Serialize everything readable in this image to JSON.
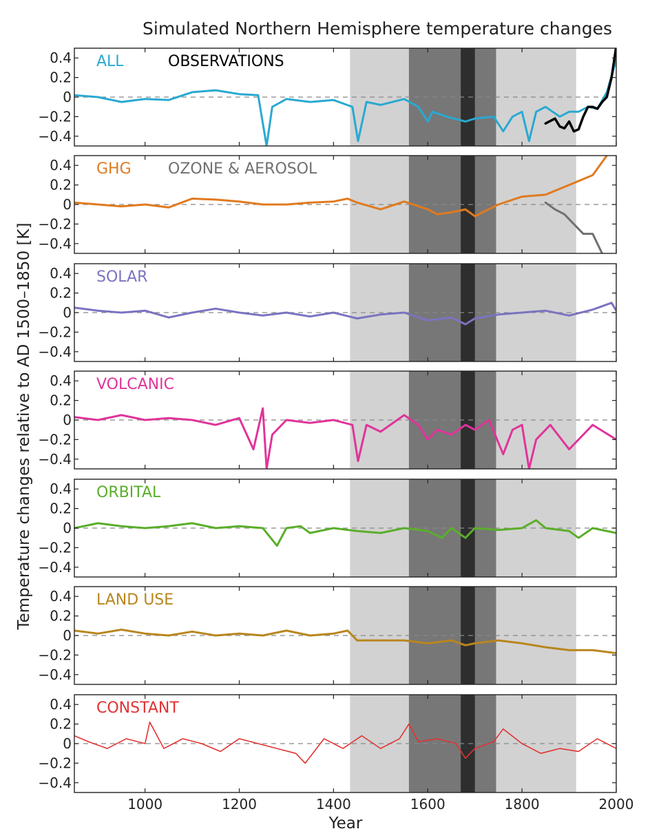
{
  "title": "Simulated Northern Hemisphere temperature changes",
  "ylabel": "Temperature changes relative to AD 1500–1850 [K]",
  "xlabel": "Year",
  "colors": {
    "all": "#29a9d1",
    "observations": "#000000",
    "ghg": "#e07a1f",
    "ozone_aerosol": "#707070",
    "solar": "#7a73c0",
    "volcanic": "#e0349a",
    "orbital": "#5aae2a",
    "land_use": "#b8861e",
    "constant": "#e23232",
    "shade_light": "#d2d2d2",
    "shade_mid": "#777777",
    "shade_dark": "#2e2e2e"
  },
  "chart_data": {
    "type": "line",
    "xlim": [
      850,
      2000
    ],
    "ylim": [
      -0.5,
      0.5
    ],
    "x_ticks": [
      1000,
      1200,
      1400,
      1600,
      1800,
      2000
    ],
    "y_ticks": [
      -0.4,
      -0.2,
      0,
      0.2,
      0.4
    ],
    "y_tick_labels": [
      "−0.4",
      "−0.2",
      "0",
      "0.2",
      "0.4"
    ],
    "reference_line": 0,
    "shaded_periods": [
      {
        "start": 1435,
        "end": 1915,
        "shade": "light"
      },
      {
        "start": 1560,
        "end": 1745,
        "shade": "mid"
      },
      {
        "start": 1670,
        "end": 1700,
        "shade": "dark"
      }
    ],
    "panels": [
      {
        "label": "ALL",
        "series": [
          {
            "name": "ALL",
            "color_key": "all",
            "x": [
              850,
              900,
              950,
              1000,
              1050,
              1100,
              1150,
              1200,
              1240,
              1258,
              1270,
              1300,
              1350,
              1400,
              1440,
              1452,
              1470,
              1500,
              1550,
              1580,
              1600,
              1610,
              1640,
              1680,
              1700,
              1740,
              1760,
              1780,
              1800,
              1815,
              1830,
              1850,
              1880,
              1900,
              1920,
              1940,
              1960,
              1980,
              2000
            ],
            "y": [
              0.02,
              0.0,
              -0.05,
              -0.02,
              -0.03,
              0.05,
              0.07,
              0.03,
              0.02,
              -0.5,
              -0.1,
              -0.02,
              -0.05,
              -0.03,
              -0.1,
              -0.45,
              -0.05,
              -0.08,
              -0.02,
              -0.1,
              -0.25,
              -0.15,
              -0.2,
              -0.25,
              -0.22,
              -0.2,
              -0.35,
              -0.2,
              -0.15,
              -0.45,
              -0.15,
              -0.1,
              -0.2,
              -0.15,
              -0.15,
              -0.1,
              -0.12,
              0.05,
              0.38
            ]
          },
          {
            "name": "OBSERVATIONS",
            "color_key": "observations",
            "x": [
              1850,
              1870,
              1880,
              1890,
              1900,
              1910,
              1920,
              1930,
              1940,
              1950,
              1960,
              1970,
              1980,
              1990,
              2000
            ],
            "y": [
              -0.27,
              -0.22,
              -0.3,
              -0.32,
              -0.25,
              -0.35,
              -0.33,
              -0.2,
              -0.1,
              -0.1,
              -0.12,
              -0.05,
              0.0,
              0.2,
              0.52
            ]
          }
        ]
      },
      {
        "label": "GHG",
        "series": [
          {
            "name": "GHG",
            "color_key": "ghg",
            "x": [
              850,
              900,
              950,
              1000,
              1050,
              1100,
              1150,
              1200,
              1250,
              1300,
              1350,
              1400,
              1430,
              1450,
              1500,
              1550,
              1600,
              1620,
              1650,
              1680,
              1700,
              1750,
              1800,
              1850,
              1900,
              1950,
              1980
            ],
            "y": [
              0.02,
              0.0,
              -0.02,
              0.0,
              -0.03,
              0.06,
              0.05,
              0.03,
              0.0,
              0.0,
              0.02,
              0.03,
              0.06,
              0.02,
              -0.05,
              0.03,
              -0.05,
              -0.1,
              -0.08,
              -0.05,
              -0.12,
              0.0,
              0.08,
              0.1,
              0.2,
              0.3,
              0.5
            ]
          },
          {
            "name": "OZONE & AEROSOL",
            "color_key": "ozone_aerosol",
            "x": [
              1850,
              1870,
              1890,
              1910,
              1930,
              1950,
              1960,
              1970
            ],
            "y": [
              0.02,
              -0.05,
              -0.1,
              -0.2,
              -0.3,
              -0.3,
              -0.4,
              -0.5
            ]
          }
        ]
      },
      {
        "label": "SOLAR",
        "series": [
          {
            "name": "SOLAR",
            "color_key": "solar",
            "x": [
              850,
              900,
              950,
              1000,
              1050,
              1100,
              1150,
              1200,
              1250,
              1300,
              1350,
              1400,
              1450,
              1500,
              1550,
              1600,
              1650,
              1680,
              1700,
              1750,
              1800,
              1850,
              1900,
              1950,
              1990,
              2000
            ],
            "y": [
              0.05,
              0.02,
              0.0,
              0.02,
              -0.05,
              0.0,
              0.04,
              0.0,
              -0.03,
              0.0,
              -0.04,
              0.0,
              -0.06,
              -0.02,
              0.0,
              -0.08,
              -0.05,
              -0.12,
              -0.06,
              -0.02,
              0.0,
              0.02,
              -0.03,
              0.03,
              0.1,
              0.02
            ]
          }
        ]
      },
      {
        "label": "VOLCANIC",
        "series": [
          {
            "name": "VOLCANIC",
            "color_key": "volcanic",
            "x": [
              850,
              900,
              950,
              1000,
              1050,
              1100,
              1150,
              1200,
              1230,
              1250,
              1258,
              1270,
              1300,
              1350,
              1400,
              1440,
              1452,
              1470,
              1500,
              1550,
              1580,
              1600,
              1620,
              1650,
              1680,
              1700,
              1730,
              1760,
              1780,
              1800,
              1815,
              1830,
              1860,
              1900,
              1950,
              2000
            ],
            "y": [
              0.03,
              0.0,
              0.05,
              0.0,
              0.02,
              0.0,
              -0.05,
              0.02,
              -0.3,
              0.12,
              -0.5,
              -0.15,
              0.0,
              -0.03,
              0.0,
              -0.05,
              -0.42,
              -0.05,
              -0.12,
              0.05,
              -0.05,
              -0.2,
              -0.1,
              -0.15,
              -0.05,
              -0.1,
              0.0,
              -0.35,
              -0.1,
              -0.05,
              -0.5,
              -0.2,
              -0.05,
              -0.3,
              -0.05,
              -0.2
            ]
          }
        ]
      },
      {
        "label": "ORBITAL",
        "series": [
          {
            "name": "ORBITAL",
            "color_key": "orbital",
            "x": [
              850,
              900,
              950,
              1000,
              1050,
              1100,
              1150,
              1200,
              1250,
              1280,
              1300,
              1330,
              1350,
              1400,
              1450,
              1500,
              1550,
              1600,
              1630,
              1650,
              1680,
              1700,
              1750,
              1800,
              1830,
              1850,
              1900,
              1920,
              1950,
              2000
            ],
            "y": [
              0.0,
              0.05,
              0.02,
              0.0,
              0.02,
              0.05,
              0.0,
              0.02,
              0.0,
              -0.18,
              0.0,
              0.02,
              -0.05,
              0.0,
              -0.03,
              -0.05,
              0.0,
              -0.03,
              -0.1,
              0.0,
              -0.1,
              0.0,
              -0.02,
              0.0,
              0.08,
              0.0,
              -0.03,
              -0.1,
              0.0,
              -0.05
            ]
          }
        ]
      },
      {
        "label": "LAND USE",
        "series": [
          {
            "name": "LAND USE",
            "color_key": "land_use",
            "x": [
              850,
              900,
              950,
              1000,
              1050,
              1100,
              1150,
              1200,
              1250,
              1300,
              1350,
              1400,
              1430,
              1450,
              1500,
              1550,
              1600,
              1650,
              1680,
              1700,
              1750,
              1800,
              1850,
              1900,
              1950,
              2000
            ],
            "y": [
              0.05,
              0.02,
              0.06,
              0.02,
              0.0,
              0.04,
              0.0,
              0.02,
              0.0,
              0.05,
              0.0,
              0.02,
              0.05,
              -0.05,
              -0.05,
              -0.05,
              -0.08,
              -0.05,
              -0.1,
              -0.08,
              -0.05,
              -0.08,
              -0.12,
              -0.15,
              -0.15,
              -0.18
            ]
          }
        ]
      },
      {
        "label": "CONSTANT",
        "series": [
          {
            "name": "CONSTANT",
            "color_key": "constant",
            "x": [
              850,
              880,
              920,
              960,
              1000,
              1010,
              1040,
              1080,
              1120,
              1160,
              1200,
              1240,
              1280,
              1320,
              1340,
              1380,
              1420,
              1460,
              1500,
              1540,
              1560,
              1580,
              1620,
              1660,
              1680,
              1700,
              1740,
              1760,
              1800,
              1840,
              1880,
              1920,
              1960,
              2000
            ],
            "y": [
              0.08,
              0.02,
              -0.05,
              0.05,
              0.0,
              0.22,
              -0.05,
              0.05,
              0.0,
              -0.08,
              0.05,
              0.0,
              -0.05,
              -0.1,
              -0.2,
              0.05,
              -0.05,
              0.08,
              -0.05,
              0.05,
              0.2,
              0.02,
              0.05,
              0.0,
              -0.15,
              -0.05,
              0.02,
              0.15,
              0.0,
              -0.1,
              -0.05,
              -0.08,
              0.05,
              -0.05
            ]
          }
        ]
      }
    ]
  }
}
